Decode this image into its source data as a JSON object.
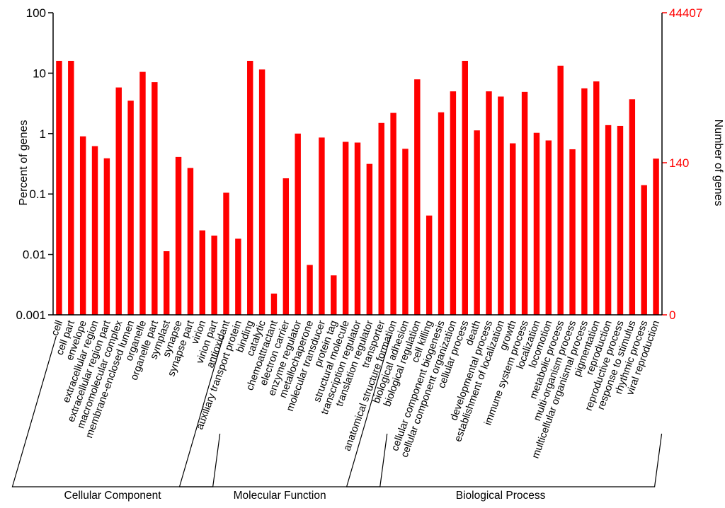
{
  "chart_data": {
    "type": "bar",
    "ylabel": "Percent of genes",
    "ylabel_right": "Number of genes",
    "yscale": "log",
    "ylim": [
      0.001,
      100
    ],
    "yticks": [
      "0.001",
      "0.01",
      "0.1",
      "1",
      "10",
      "100"
    ],
    "yticks_right": [
      "0",
      "140",
      "44407"
    ],
    "grid": false,
    "bar_color": "#ff0000",
    "right_axis_color": "#ff0000",
    "categories": [
      "cell",
      "cell part",
      "envelope",
      "extracellular region",
      "extracellular region part",
      "macromolecular complex",
      "membrane-enclosed lumen",
      "organelle",
      "organelle part",
      "symplast",
      "synapse",
      "synapse part",
      "virion",
      "virion part",
      "antioxidant",
      "auxiliary transport protein",
      "binding",
      "catalytic",
      "chemoattractant",
      "electron carrier",
      "enzyme regulator",
      "metallochaperone",
      "molecular transducer",
      "protein tag",
      "structural molecule",
      "transcription regulator",
      "translation regulator",
      "transporter",
      "anatomical structure formation",
      "biological adhesion",
      "biological regulation",
      "cell killing",
      "cellular component biogenesis",
      "cellular component organization",
      "cellular process",
      "death",
      "developmental process",
      "establishment of localization",
      "growth",
      "immune system process",
      "localization",
      "locomotion",
      "metabolic process",
      "multi-organism process",
      "multicellular organismal process",
      "pigmentation",
      "reproduction",
      "reproductive process",
      "response to stimulus",
      "rhythmic process",
      "viral reproduction"
    ],
    "values": [
      16,
      16,
      0.9,
      0.62,
      0.39,
      5.8,
      3.5,
      10.5,
      7.1,
      0.0113,
      0.41,
      0.27,
      0.025,
      0.0205,
      0.105,
      0.0182,
      16,
      11.5,
      0.00225,
      0.182,
      1.0,
      0.0067,
      0.86,
      0.0045,
      0.73,
      0.71,
      0.315,
      1.5,
      2.2,
      0.56,
      7.9,
      0.044,
      2.25,
      5.0,
      16,
      1.13,
      5.0,
      4.1,
      0.69,
      4.9,
      1.03,
      0.77,
      13.3,
      0.55,
      5.6,
      7.3,
      1.38,
      1.34,
      3.7,
      0.14,
      0.385
    ],
    "groups": [
      {
        "name": "Cellular Component",
        "start": 0,
        "end": 13
      },
      {
        "name": "Molecular Function",
        "start": 14,
        "end": 27
      },
      {
        "name": "Biological Process",
        "start": 28,
        "end": 50
      }
    ]
  }
}
